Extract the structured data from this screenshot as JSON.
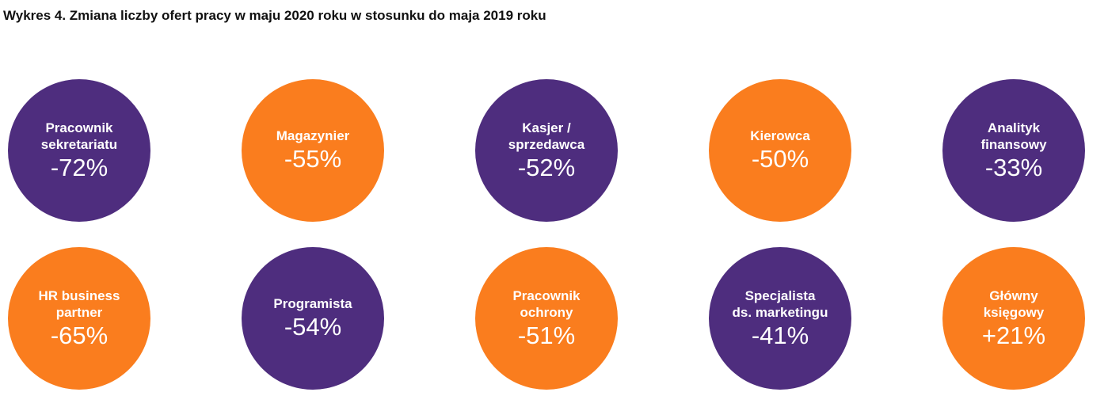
{
  "chart_data": {
    "type": "table",
    "title": "Wykres 4. Zmiana liczby ofert pracy w maju 2020 roku w stosunku do maja 2019 roku",
    "colors": {
      "purple": "#4e2d7e",
      "orange": "#fa7d1e"
    },
    "items": [
      {
        "label": "Pracownik\nsekretariatu",
        "value": "-72%",
        "color": "purple"
      },
      {
        "label": "Magazynier",
        "value": "-55%",
        "color": "orange"
      },
      {
        "label": "Kasjer /\nsprzedawca",
        "value": "-52%",
        "color": "purple"
      },
      {
        "label": "Kierowca",
        "value": "-50%",
        "color": "orange"
      },
      {
        "label": "Analityk\nfinansowy",
        "value": "-33%",
        "color": "purple"
      },
      {
        "label": "HR business\npartner",
        "value": "-65%",
        "color": "orange"
      },
      {
        "label": "Programista",
        "value": "-54%",
        "color": "purple"
      },
      {
        "label": "Pracownik\nochrony",
        "value": "-51%",
        "color": "orange"
      },
      {
        "label": "Specjalista\nds. marketingu",
        "value": "-41%",
        "color": "purple"
      },
      {
        "label": "Główny\nksięgowy",
        "value": "+21%",
        "color": "orange"
      }
    ]
  }
}
